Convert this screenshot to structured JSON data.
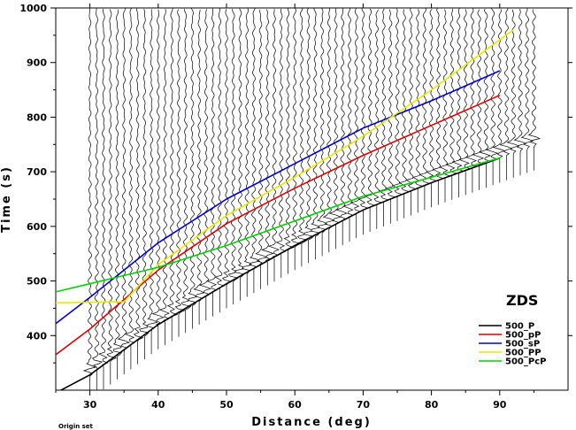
{
  "chart_data": {
    "type": "line",
    "title": "",
    "panel_label": "ZDS",
    "xlabel": "Distance (deg)",
    "ylabel": "Time (s)",
    "xlim": [
      25,
      100
    ],
    "ylim": [
      300,
      1000
    ],
    "x_ticks": [
      30,
      40,
      50,
      60,
      70,
      80,
      90
    ],
    "y_ticks": [
      400,
      500,
      600,
      700,
      800,
      900,
      1000
    ],
    "footnote": "Origin set",
    "legend_position": "lower-right",
    "traces": {
      "x_start": 30,
      "x_end": 95,
      "count": 66,
      "color": "#000000"
    },
    "series": [
      {
        "name": "500_P",
        "color": "#000000",
        "x": [
          25,
          30,
          40,
          50,
          60,
          70,
          80,
          90
        ],
        "y": [
          295,
          328,
          420,
          495,
          565,
          630,
          680,
          725
        ]
      },
      {
        "name": "500_pP",
        "color": "#e00000",
        "x": [
          25,
          30,
          40,
          50,
          60,
          70,
          80,
          90
        ],
        "y": [
          365,
          412,
          520,
          605,
          670,
          730,
          785,
          840
        ]
      },
      {
        "name": "500_sP",
        "color": "#0000d0",
        "x": [
          25,
          30,
          40,
          50,
          60,
          70,
          80,
          90
        ],
        "y": [
          422,
          470,
          570,
          650,
          715,
          780,
          830,
          885
        ]
      },
      {
        "name": "500_PP",
        "color": "#e8e800",
        "x": [
          25,
          35,
          40,
          50,
          60,
          70,
          80,
          92
        ],
        "y": [
          460,
          462,
          530,
          620,
          690,
          765,
          850,
          960
        ]
      },
      {
        "name": "500_PcP",
        "color": "#00d000",
        "x": [
          25,
          30,
          40,
          50,
          60,
          70,
          80,
          90
        ],
        "y": [
          480,
          495,
          525,
          565,
          610,
          655,
          690,
          725
        ]
      }
    ]
  }
}
